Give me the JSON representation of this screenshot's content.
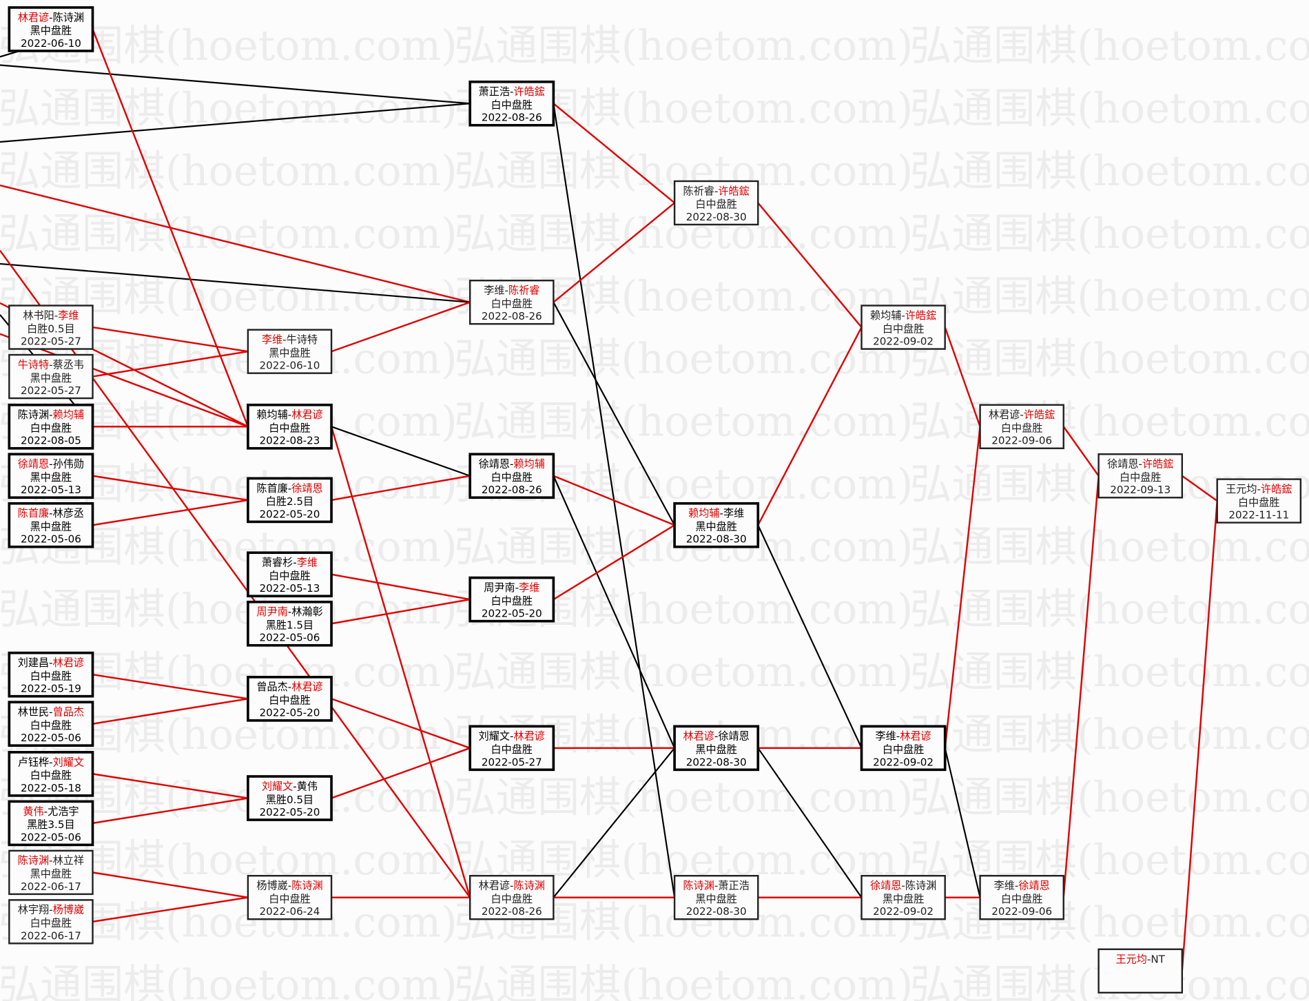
{
  "watermark": "弘通围棋(hoetom.com)",
  "colors": {
    "winner": "#e00000",
    "loser_line": "#000000",
    "winner_line": "#e00000"
  },
  "games": {
    "A0": {
      "p1": "林君谚",
      "p2": "陈诗渊",
      "winner": 1,
      "result": "黑中盘胜",
      "date": "2022-06-10",
      "style": "thick"
    },
    "A1": {
      "p1": "林书阳",
      "p2": "李维",
      "winner": 2,
      "result": "白胜0.5目",
      "date": "2022-05-27",
      "style": "thin"
    },
    "A2": {
      "p1": "牛诗特",
      "p2": "蔡丞韦",
      "winner": 1,
      "result": "黑中盘胜",
      "date": "2022-05-27",
      "style": "thin"
    },
    "A3": {
      "p1": "陈诗渊",
      "p2": "赖均辅",
      "winner": 2,
      "result": "白中盘胜",
      "date": "2022-08-05",
      "style": "thick"
    },
    "A4": {
      "p1": "徐靖恩",
      "p2": "孙伟勋",
      "winner": 1,
      "result": "黑中盘胜",
      "date": "2022-05-13",
      "style": "thick"
    },
    "A5": {
      "p1": "陈首廉",
      "p2": "林彦丞",
      "winner": 1,
      "result": "黑中盘胜",
      "date": "2022-05-06",
      "style": "thick"
    },
    "A6": {
      "p1": "刘建昌",
      "p2": "林君谚",
      "winner": 2,
      "result": "白中盘胜",
      "date": "2022-05-19",
      "style": "thick"
    },
    "A7": {
      "p1": "林世民",
      "p2": "曾品杰",
      "winner": 2,
      "result": "白中盘胜",
      "date": "2022-05-06",
      "style": "thick"
    },
    "A8": {
      "p1": "卢钰桦",
      "p2": "刘耀文",
      "winner": 2,
      "result": "白中盘胜",
      "date": "2022-05-18",
      "style": "thick"
    },
    "A9": {
      "p1": "黄伟",
      "p2": "尤浩宇",
      "winner": 1,
      "result": "黑胜3.5目",
      "date": "2022-05-06",
      "style": "thick"
    },
    "A10": {
      "p1": "陈诗渊",
      "p2": "林立祥",
      "winner": 1,
      "result": "黑中盘胜",
      "date": "2022-06-17",
      "style": "thin"
    },
    "A11": {
      "p1": "林宇翔",
      "p2": "杨博崴",
      "winner": 2,
      "result": "白中盘胜",
      "date": "2022-06-17",
      "style": "thin"
    },
    "B0": {
      "p1": "李维",
      "p2": "牛诗特",
      "winner": 1,
      "result": "黑中盘胜",
      "date": "2022-06-10",
      "style": "thin"
    },
    "B1": {
      "p1": "赖均辅",
      "p2": "林君谚",
      "winner": 2,
      "result": "白中盘胜",
      "date": "2022-08-23",
      "style": "thick"
    },
    "B2": {
      "p1": "陈首廉",
      "p2": "徐靖恩",
      "winner": 2,
      "result": "白胜2.5目",
      "date": "2022-05-20",
      "style": "thick"
    },
    "B3": {
      "p1": "萧睿杉",
      "p2": "李维",
      "winner": 2,
      "result": "白中盘胜",
      "date": "2022-05-13",
      "style": "thick"
    },
    "B4": {
      "p1": "周尹南",
      "p2": "林瀚彰",
      "winner": 1,
      "result": "黑胜1.5目",
      "date": "2022-05-06",
      "style": "thick"
    },
    "B5": {
      "p1": "曾品杰",
      "p2": "林君谚",
      "winner": 2,
      "result": "白中盘胜",
      "date": "2022-05-20",
      "style": "thick"
    },
    "B6": {
      "p1": "刘耀文",
      "p2": "黄伟",
      "winner": 1,
      "result": "黑胜0.5目",
      "date": "2022-05-20",
      "style": "thick"
    },
    "B7": {
      "p1": "杨博崴",
      "p2": "陈诗渊",
      "winner": 2,
      "result": "白中盘胜",
      "date": "2022-06-24",
      "style": "thin"
    },
    "C0": {
      "p1": "萧正浩",
      "p2": "许皓鋐",
      "winner": 2,
      "result": "白中盘胜",
      "date": "2022-08-26",
      "style": "thick"
    },
    "C1": {
      "p1": "李维",
      "p2": "陈祈睿",
      "winner": 2,
      "result": "白中盘胜",
      "date": "2022-08-26",
      "style": "thin"
    },
    "C2": {
      "p1": "徐靖恩",
      "p2": "赖均辅",
      "winner": 2,
      "result": "白中盘胜",
      "date": "2022-08-26",
      "style": "thick"
    },
    "C3": {
      "p1": "周尹南",
      "p2": "李维",
      "winner": 2,
      "result": "白中盘胜",
      "date": "2022-05-20",
      "style": "thick"
    },
    "C4": {
      "p1": "刘耀文",
      "p2": "林君谚",
      "winner": 2,
      "result": "白中盘胜",
      "date": "2022-05-27",
      "style": "thick"
    },
    "C5": {
      "p1": "林君谚",
      "p2": "陈诗渊",
      "winner": 2,
      "result": "白中盘胜",
      "date": "2022-08-26",
      "style": "thin"
    },
    "D0": {
      "p1": "陈祈睿",
      "p2": "许皓鋐",
      "winner": 2,
      "result": "白中盘胜",
      "date": "2022-08-30",
      "style": "thin"
    },
    "D1": {
      "p1": "赖均辅",
      "p2": "李维",
      "winner": 1,
      "result": "黑中盘胜",
      "date": "2022-08-30",
      "style": "thick"
    },
    "D2": {
      "p1": "林君谚",
      "p2": "徐靖恩",
      "winner": 1,
      "result": "黑中盘胜",
      "date": "2022-08-30",
      "style": "thick"
    },
    "D3": {
      "p1": "陈诗渊",
      "p2": "萧正浩",
      "winner": 1,
      "result": "黑中盘胜",
      "date": "2022-08-30",
      "style": "thin"
    },
    "E0": {
      "p1": "赖均辅",
      "p2": "许皓鋐",
      "winner": 2,
      "result": "白中盘胜",
      "date": "2022-09-02",
      "style": "thin"
    },
    "E1": {
      "p1": "李维",
      "p2": "林君谚",
      "winner": 2,
      "result": "白中盘胜",
      "date": "2022-09-02",
      "style": "thick"
    },
    "E2": {
      "p1": "徐靖恩",
      "p2": "陈诗渊",
      "winner": 1,
      "result": "黑中盘胜",
      "date": "2022-09-02",
      "style": "thin"
    },
    "F0": {
      "p1": "林君谚",
      "p2": "许皓鋐",
      "winner": 2,
      "result": "白中盘胜",
      "date": "2022-09-06",
      "style": "thin"
    },
    "F1": {
      "p1": "李维",
      "p2": "徐靖恩",
      "winner": 2,
      "result": "白中盘胜",
      "date": "2022-09-06",
      "style": "thin"
    },
    "G0": {
      "p1": "徐靖恩",
      "p2": "许皓鋐",
      "winner": 2,
      "result": "白中盘胜",
      "date": "2022-09-13",
      "style": "thin"
    },
    "G1": {
      "p1": "王元均",
      "p2": "NT",
      "winner": 1,
      "result": "",
      "date": "",
      "style": "thin"
    },
    "H0": {
      "p1": "王元均",
      "p2": "许皓鋐",
      "winner": 2,
      "result": "白中盘胜",
      "date": "2022-11-11",
      "style": "thin"
    }
  }
}
